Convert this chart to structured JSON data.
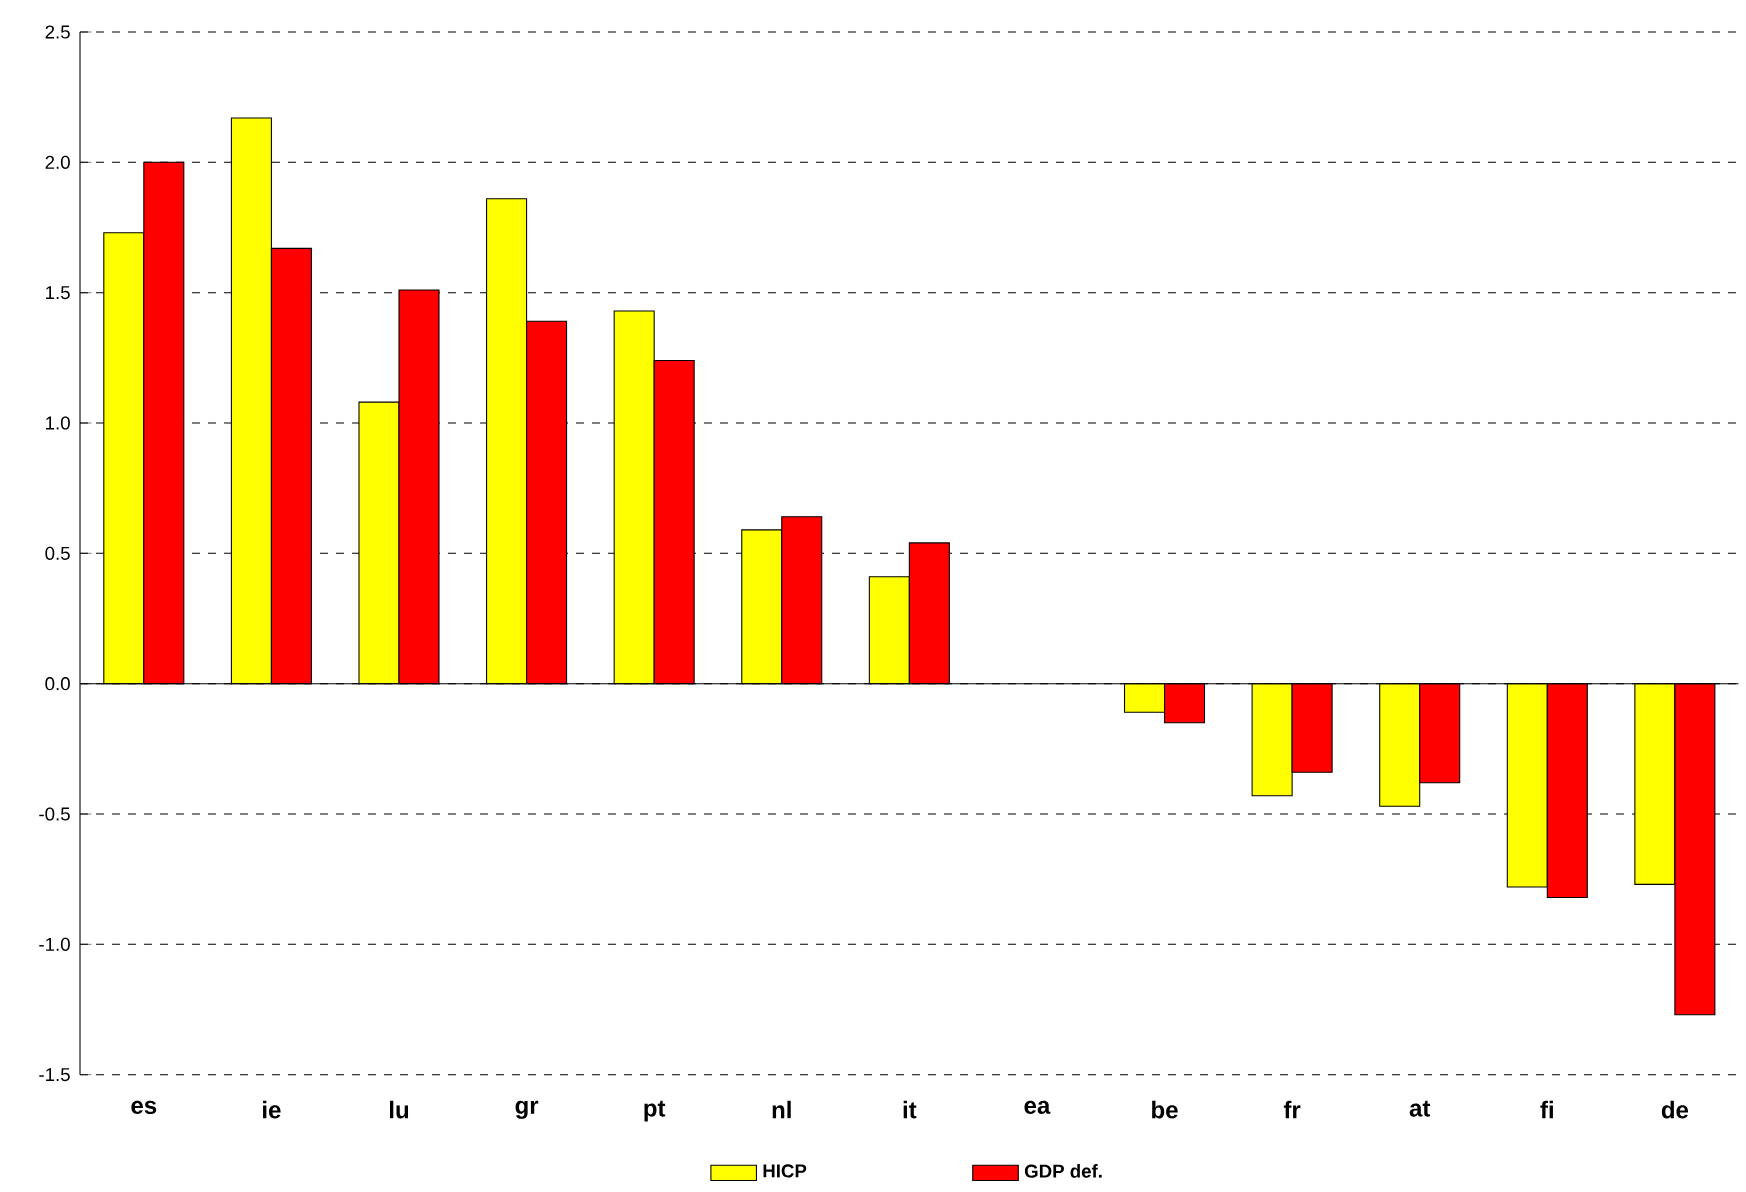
{
  "chart_data": {
    "type": "bar",
    "categories": [
      "es",
      "ie",
      "lu",
      "gr",
      "pt",
      "nl",
      "it",
      "ea",
      "be",
      "fr",
      "at",
      "fi",
      "de"
    ],
    "series": [
      {
        "name": "HICP",
        "color": "#ffff00",
        "values": [
          1.73,
          2.17,
          1.08,
          1.86,
          1.43,
          0.59,
          0.41,
          0,
          -0.11,
          -0.43,
          -0.47,
          -0.78,
          -0.77
        ]
      },
      {
        "name": "GDP def.",
        "color": "#ff0000",
        "values": [
          2.0,
          1.67,
          1.51,
          1.39,
          1.24,
          0.64,
          0.54,
          0,
          -0.15,
          -0.34,
          -0.38,
          -0.82,
          -1.27
        ]
      }
    ],
    "ylim": [
      -1.5,
      2.5
    ],
    "yticks": [
      {
        "value": -1.5,
        "label": "-1.5"
      },
      {
        "value": -1.0,
        "label": "-1.0"
      },
      {
        "value": -0.5,
        "label": "-0.5"
      },
      {
        "value": 0.0,
        "label": "0.0"
      },
      {
        "value": 0.5,
        "label": "0.5"
      },
      {
        "value": 1.0,
        "label": "1.0"
      },
      {
        "value": 1.5,
        "label": "1.5"
      },
      {
        "value": 2.0,
        "label": "2.0"
      },
      {
        "value": 2.5,
        "label": "2.5"
      }
    ],
    "grid": "y",
    "legend": "bottom"
  }
}
